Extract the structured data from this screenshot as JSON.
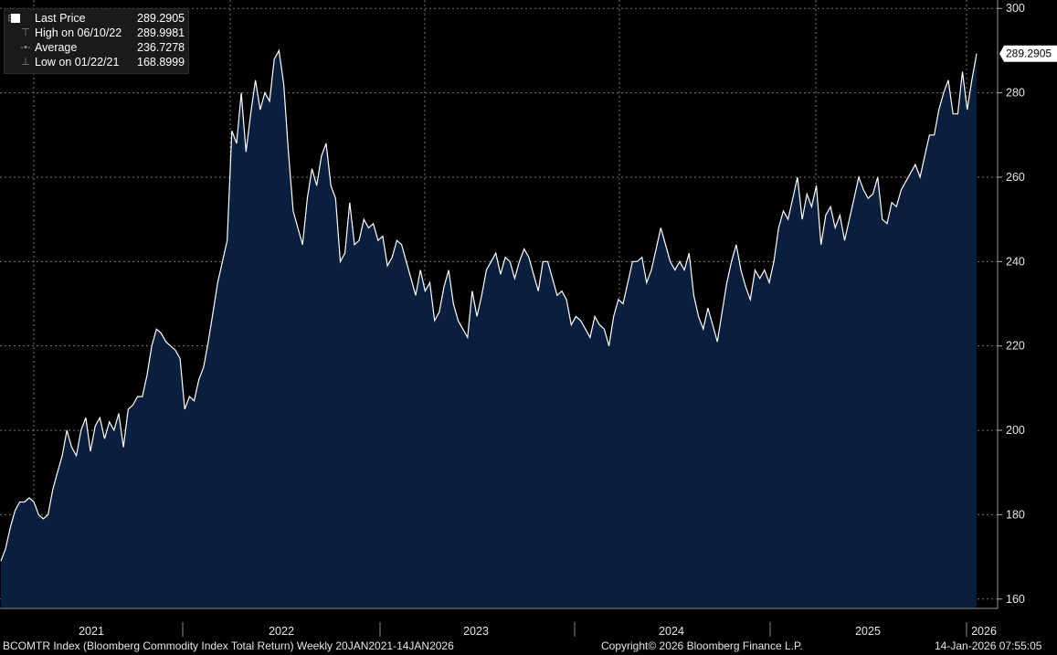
{
  "legend": {
    "items": [
      {
        "label": "Last Price",
        "value": "289.2905",
        "icon": "white-square"
      },
      {
        "label": "High on 06/10/22",
        "value": "289.9981",
        "icon": "high-marker"
      },
      {
        "label": "Average",
        "value": "236.7278",
        "icon": "average-marker"
      },
      {
        "label": "Low on 01/22/21",
        "value": "168.8999",
        "icon": "low-marker"
      }
    ]
  },
  "last_price_tag": "289.2905",
  "footer": {
    "left": "BCOMTR Index (Bloomberg Commodity Index Total Return) Weekly 20JAN2021-14JAN2026",
    "center": "Copyright© 2026 Bloomberg Finance L.P.",
    "right": "14-Jan-2026 07:55:05"
  },
  "colors": {
    "background": "#000000",
    "area_fill": "#0a1f3d",
    "line": "#ffffff",
    "grid": "#7a7a7a"
  },
  "chart_data": {
    "type": "area",
    "x_axis_labels": [
      "2021",
      "2022",
      "2023",
      "2024",
      "2025",
      "2026"
    ],
    "y_ticks": [
      160,
      180,
      200,
      220,
      240,
      260,
      280,
      300
    ],
    "ylim": [
      158,
      302
    ],
    "grid": true,
    "legend_position": "top-left",
    "series": [
      {
        "values": [
          169,
          172,
          177,
          181,
          183,
          183,
          184,
          183,
          180,
          179,
          180,
          186,
          190,
          194,
          200,
          196,
          194,
          200,
          203,
          195,
          201,
          203,
          198,
          202,
          200,
          204,
          196,
          205,
          206,
          208,
          208,
          213,
          220,
          224,
          223,
          221,
          220,
          219,
          217,
          205,
          208,
          207,
          212,
          215,
          221,
          228,
          235,
          240,
          245,
          271,
          268,
          280,
          266,
          275,
          283,
          276,
          280,
          278,
          288,
          290,
          282,
          266,
          252,
          248,
          244,
          255,
          262,
          258,
          265,
          268,
          258,
          255,
          240,
          242,
          254,
          244,
          245,
          250,
          248,
          249,
          245,
          246,
          239,
          241,
          245,
          244,
          240,
          236,
          232,
          238,
          233,
          235,
          226,
          228,
          234,
          238,
          230,
          226,
          224,
          222,
          233,
          227,
          232,
          238,
          240,
          242,
          237,
          241,
          240,
          236,
          240,
          243,
          241,
          237,
          233,
          240,
          240,
          236,
          232,
          233,
          231,
          225,
          227,
          226,
          224,
          222,
          227,
          225,
          224,
          220,
          227,
          231,
          230,
          235,
          240,
          240,
          241,
          235,
          238,
          243,
          248,
          244,
          240,
          238,
          240,
          238,
          242,
          232,
          227,
          224,
          229,
          225,
          221,
          228,
          235,
          240,
          244,
          238,
          234,
          231,
          238,
          236,
          238,
          235,
          240,
          248,
          252,
          250,
          255,
          260,
          250,
          256,
          253,
          258,
          244,
          251,
          253,
          248,
          251,
          245,
          250,
          255,
          260,
          257,
          255,
          256,
          260,
          250,
          249,
          254,
          253,
          257,
          259,
          261,
          263,
          260,
          265,
          270,
          270,
          276,
          280,
          283,
          275,
          275,
          285,
          276,
          283,
          289.29
        ]
      }
    ]
  }
}
